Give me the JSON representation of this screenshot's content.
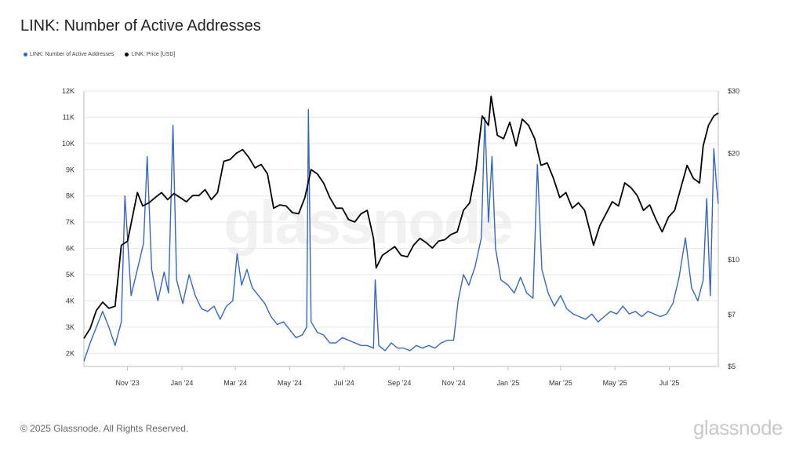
{
  "title": "LINK: Number of Active Addresses",
  "footer": "© 2025 Glassnode. All Rights Reserved.",
  "brand": "glassnode",
  "watermark": "glassnode",
  "colors": {
    "addresses": "#3366cc",
    "price": "#000000",
    "grid": "#e6e6e6",
    "axis": "#bdbdbd"
  },
  "chart_data": {
    "type": "line",
    "x_axis": {
      "type": "date",
      "start": "2023-09-13",
      "end": "2025-08-25",
      "ticks": [
        {
          "date": "2023-11-01",
          "label": "Nov '23"
        },
        {
          "date": "2024-01-01",
          "label": "Jan '24"
        },
        {
          "date": "2024-03-01",
          "label": "Mar '24"
        },
        {
          "date": "2024-05-01",
          "label": "May '24"
        },
        {
          "date": "2024-07-01",
          "label": "Jul '24"
        },
        {
          "date": "2024-09-01",
          "label": "Sep '24"
        },
        {
          "date": "2024-11-01",
          "label": "Nov '24"
        },
        {
          "date": "2025-01-01",
          "label": "Jan '25"
        },
        {
          "date": "2025-03-01",
          "label": "Mar '25"
        },
        {
          "date": "2025-05-01",
          "label": "May '25"
        },
        {
          "date": "2025-07-01",
          "label": "Jul '25"
        }
      ]
    },
    "y_left": {
      "scale": "linear",
      "range": [
        1500,
        12000
      ],
      "ticks": [
        {
          "value": 2000,
          "label": "2K"
        },
        {
          "value": 3000,
          "label": "3K"
        },
        {
          "value": 4000,
          "label": "4K"
        },
        {
          "value": 5000,
          "label": "5K"
        },
        {
          "value": 6000,
          "label": "6K"
        },
        {
          "value": 7000,
          "label": "7K"
        },
        {
          "value": 8000,
          "label": "8K"
        },
        {
          "value": 9000,
          "label": "9K"
        },
        {
          "value": 10000,
          "label": "10K"
        },
        {
          "value": 11000,
          "label": "11K"
        },
        {
          "value": 12000,
          "label": "12K"
        }
      ]
    },
    "y_right": {
      "scale": "log",
      "range": [
        5,
        30
      ],
      "ticks": [
        {
          "value": 5,
          "label": "$5"
        },
        {
          "value": 7,
          "label": "$7"
        },
        {
          "value": 10,
          "label": "$10"
        },
        {
          "value": 20,
          "label": "$20"
        },
        {
          "value": 30,
          "label": "$30"
        }
      ]
    },
    "grid": true,
    "legend_position": "top-left",
    "series": [
      {
        "name": "LINK: Number of Active Addresses",
        "axis": "left",
        "color": "#3366cc",
        "points": [
          [
            "2023-09-13",
            1700
          ],
          [
            "2023-09-20",
            2400
          ],
          [
            "2023-09-27",
            3000
          ],
          [
            "2023-10-04",
            3600
          ],
          [
            "2023-10-11",
            3000
          ],
          [
            "2023-10-18",
            2300
          ],
          [
            "2023-10-25",
            3200
          ],
          [
            "2023-10-29",
            8000
          ],
          [
            "2023-11-05",
            4200
          ],
          [
            "2023-11-12",
            5200
          ],
          [
            "2023-11-19",
            6200
          ],
          [
            "2023-11-23",
            9500
          ],
          [
            "2023-11-28",
            5200
          ],
          [
            "2023-12-05",
            4000
          ],
          [
            "2023-12-12",
            5100
          ],
          [
            "2023-12-17",
            4300
          ],
          [
            "2023-12-22",
            10700
          ],
          [
            "2023-12-26",
            4800
          ],
          [
            "2024-01-02",
            3900
          ],
          [
            "2024-01-09",
            5000
          ],
          [
            "2024-01-16",
            4200
          ],
          [
            "2024-01-23",
            3700
          ],
          [
            "2024-01-30",
            3600
          ],
          [
            "2024-02-06",
            3800
          ],
          [
            "2024-02-13",
            3300
          ],
          [
            "2024-02-20",
            3800
          ],
          [
            "2024-02-27",
            4000
          ],
          [
            "2024-03-03",
            5800
          ],
          [
            "2024-03-08",
            4600
          ],
          [
            "2024-03-14",
            5200
          ],
          [
            "2024-03-20",
            4500
          ],
          [
            "2024-03-27",
            4200
          ],
          [
            "2024-04-03",
            3900
          ],
          [
            "2024-04-10",
            3400
          ],
          [
            "2024-04-17",
            3100
          ],
          [
            "2024-04-24",
            3200
          ],
          [
            "2024-05-01",
            2900
          ],
          [
            "2024-05-08",
            2600
          ],
          [
            "2024-05-15",
            2700
          ],
          [
            "2024-05-20",
            3000
          ],
          [
            "2024-05-22",
            11300
          ],
          [
            "2024-05-25",
            3200
          ],
          [
            "2024-06-01",
            2800
          ],
          [
            "2024-06-08",
            2700
          ],
          [
            "2024-06-15",
            2400
          ],
          [
            "2024-06-22",
            2400
          ],
          [
            "2024-06-29",
            2600
          ],
          [
            "2024-07-06",
            2500
          ],
          [
            "2024-07-13",
            2400
          ],
          [
            "2024-07-20",
            2300
          ],
          [
            "2024-07-27",
            2300
          ],
          [
            "2024-08-03",
            2200
          ],
          [
            "2024-08-05",
            4800
          ],
          [
            "2024-08-09",
            2300
          ],
          [
            "2024-08-16",
            2100
          ],
          [
            "2024-08-23",
            2400
          ],
          [
            "2024-08-30",
            2200
          ],
          [
            "2024-09-06",
            2200
          ],
          [
            "2024-09-13",
            2100
          ],
          [
            "2024-09-20",
            2300
          ],
          [
            "2024-09-27",
            2200
          ],
          [
            "2024-10-04",
            2300
          ],
          [
            "2024-10-11",
            2200
          ],
          [
            "2024-10-18",
            2400
          ],
          [
            "2024-10-25",
            2500
          ],
          [
            "2024-11-01",
            2500
          ],
          [
            "2024-11-06",
            4000
          ],
          [
            "2024-11-12",
            5000
          ],
          [
            "2024-11-18",
            4600
          ],
          [
            "2024-11-25",
            5300
          ],
          [
            "2024-12-02",
            6400
          ],
          [
            "2024-12-06",
            11000
          ],
          [
            "2024-12-10",
            7000
          ],
          [
            "2024-12-14",
            9500
          ],
          [
            "2024-12-18",
            6000
          ],
          [
            "2024-12-24",
            4800
          ],
          [
            "2025-01-01",
            4600
          ],
          [
            "2025-01-08",
            4300
          ],
          [
            "2025-01-15",
            4900
          ],
          [
            "2025-01-22",
            4300
          ],
          [
            "2025-01-29",
            4100
          ],
          [
            "2025-02-03",
            9200
          ],
          [
            "2025-02-08",
            5200
          ],
          [
            "2025-02-15",
            4300
          ],
          [
            "2025-02-22",
            3800
          ],
          [
            "2025-03-01",
            4200
          ],
          [
            "2025-03-08",
            3700
          ],
          [
            "2025-03-15",
            3500
          ],
          [
            "2025-03-22",
            3400
          ],
          [
            "2025-03-29",
            3300
          ],
          [
            "2025-04-05",
            3500
          ],
          [
            "2025-04-12",
            3200
          ],
          [
            "2025-04-19",
            3400
          ],
          [
            "2025-04-26",
            3600
          ],
          [
            "2025-05-03",
            3500
          ],
          [
            "2025-05-10",
            3800
          ],
          [
            "2025-05-17",
            3500
          ],
          [
            "2025-05-24",
            3600
          ],
          [
            "2025-05-31",
            3400
          ],
          [
            "2025-06-07",
            3600
          ],
          [
            "2025-06-14",
            3500
          ],
          [
            "2025-06-21",
            3400
          ],
          [
            "2025-06-28",
            3500
          ],
          [
            "2025-07-05",
            3900
          ],
          [
            "2025-07-12",
            4900
          ],
          [
            "2025-07-19",
            6400
          ],
          [
            "2025-07-26",
            4500
          ],
          [
            "2025-08-02",
            4000
          ],
          [
            "2025-08-08",
            4800
          ],
          [
            "2025-08-12",
            7900
          ],
          [
            "2025-08-16",
            4200
          ],
          [
            "2025-08-20",
            9800
          ],
          [
            "2025-08-23",
            8400
          ],
          [
            "2025-08-25",
            7700
          ]
        ]
      },
      {
        "name": "LINK: Price [USD]",
        "axis": "right",
        "color": "#000000",
        "points": [
          [
            "2023-09-13",
            6.0
          ],
          [
            "2023-09-20",
            6.4
          ],
          [
            "2023-09-27",
            7.2
          ],
          [
            "2023-10-04",
            7.6
          ],
          [
            "2023-10-11",
            7.3
          ],
          [
            "2023-10-18",
            7.4
          ],
          [
            "2023-10-25",
            11.0
          ],
          [
            "2023-11-01",
            11.3
          ],
          [
            "2023-11-08",
            13.8
          ],
          [
            "2023-11-12",
            15.5
          ],
          [
            "2023-11-18",
            14.2
          ],
          [
            "2023-11-25",
            14.5
          ],
          [
            "2023-12-02",
            15.0
          ],
          [
            "2023-12-09",
            15.5
          ],
          [
            "2023-12-16",
            14.8
          ],
          [
            "2023-12-23",
            15.4
          ],
          [
            "2023-12-30",
            15.0
          ],
          [
            "2024-01-06",
            14.6
          ],
          [
            "2024-01-13",
            15.2
          ],
          [
            "2024-01-20",
            15.2
          ],
          [
            "2024-01-27",
            15.8
          ],
          [
            "2024-02-03",
            14.8
          ],
          [
            "2024-02-10",
            15.5
          ],
          [
            "2024-02-17",
            19.0
          ],
          [
            "2024-02-24",
            19.2
          ],
          [
            "2024-03-02",
            20.0
          ],
          [
            "2024-03-09",
            20.5
          ],
          [
            "2024-03-16",
            19.5
          ],
          [
            "2024-03-23",
            18.2
          ],
          [
            "2024-03-30",
            18.6
          ],
          [
            "2024-04-06",
            17.5
          ],
          [
            "2024-04-13",
            14.0
          ],
          [
            "2024-04-20",
            14.3
          ],
          [
            "2024-04-27",
            14.2
          ],
          [
            "2024-05-04",
            13.6
          ],
          [
            "2024-05-11",
            13.5
          ],
          [
            "2024-05-18",
            15.0
          ],
          [
            "2024-05-25",
            18.0
          ],
          [
            "2024-06-01",
            17.5
          ],
          [
            "2024-06-08",
            16.5
          ],
          [
            "2024-06-15",
            15.0
          ],
          [
            "2024-06-22",
            14.0
          ],
          [
            "2024-06-29",
            14.0
          ],
          [
            "2024-07-06",
            13.0
          ],
          [
            "2024-07-13",
            12.8
          ],
          [
            "2024-07-20",
            13.5
          ],
          [
            "2024-07-27",
            13.8
          ],
          [
            "2024-08-03",
            11.5
          ],
          [
            "2024-08-06",
            9.5
          ],
          [
            "2024-08-13",
            10.3
          ],
          [
            "2024-08-20",
            10.6
          ],
          [
            "2024-08-27",
            10.9
          ],
          [
            "2024-09-03",
            10.3
          ],
          [
            "2024-09-10",
            10.2
          ],
          [
            "2024-09-17",
            11.0
          ],
          [
            "2024-09-24",
            11.5
          ],
          [
            "2024-10-01",
            11.2
          ],
          [
            "2024-10-08",
            10.8
          ],
          [
            "2024-10-15",
            11.3
          ],
          [
            "2024-10-22",
            11.4
          ],
          [
            "2024-10-29",
            11.8
          ],
          [
            "2024-11-05",
            12.0
          ],
          [
            "2024-11-12",
            13.8
          ],
          [
            "2024-11-19",
            14.5
          ],
          [
            "2024-11-26",
            18.0
          ],
          [
            "2024-12-03",
            25.5
          ],
          [
            "2024-12-10",
            24.0
          ],
          [
            "2024-12-13",
            29.0
          ],
          [
            "2024-12-20",
            22.5
          ],
          [
            "2024-12-27",
            22.0
          ],
          [
            "2025-01-03",
            24.5
          ],
          [
            "2025-01-10",
            21.0
          ],
          [
            "2025-01-17",
            25.0
          ],
          [
            "2025-01-24",
            24.0
          ],
          [
            "2025-01-31",
            22.0
          ],
          [
            "2025-02-07",
            18.5
          ],
          [
            "2025-02-14",
            18.8
          ],
          [
            "2025-02-21",
            17.0
          ],
          [
            "2025-02-28",
            15.0
          ],
          [
            "2025-03-07",
            15.5
          ],
          [
            "2025-03-14",
            14.0
          ],
          [
            "2025-03-21",
            14.5
          ],
          [
            "2025-03-28",
            13.8
          ],
          [
            "2025-04-07",
            11.0
          ],
          [
            "2025-04-14",
            12.5
          ],
          [
            "2025-04-21",
            13.5
          ],
          [
            "2025-04-28",
            14.6
          ],
          [
            "2025-05-05",
            14.2
          ],
          [
            "2025-05-12",
            16.5
          ],
          [
            "2025-05-19",
            16.0
          ],
          [
            "2025-05-26",
            15.2
          ],
          [
            "2025-06-02",
            13.8
          ],
          [
            "2025-06-09",
            14.3
          ],
          [
            "2025-06-16",
            13.0
          ],
          [
            "2025-06-23",
            12.0
          ],
          [
            "2025-06-30",
            13.2
          ],
          [
            "2025-07-07",
            13.8
          ],
          [
            "2025-07-14",
            16.0
          ],
          [
            "2025-07-21",
            18.5
          ],
          [
            "2025-07-28",
            17.0
          ],
          [
            "2025-08-04",
            16.5
          ],
          [
            "2025-08-08",
            21.0
          ],
          [
            "2025-08-14",
            24.0
          ],
          [
            "2025-08-20",
            25.5
          ],
          [
            "2025-08-25",
            26.0
          ]
        ]
      }
    ]
  }
}
